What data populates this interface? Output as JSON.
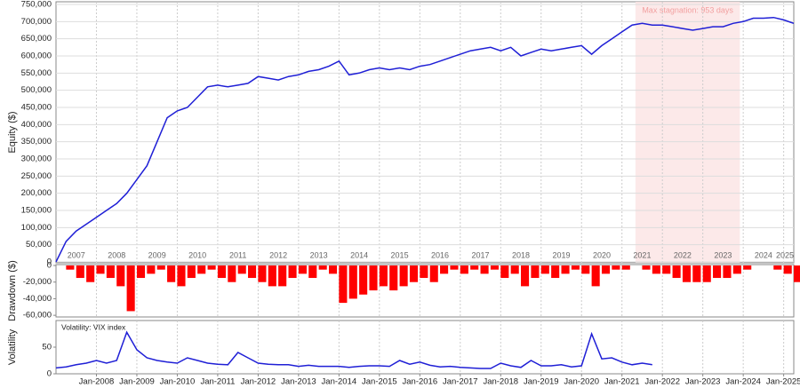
{
  "chart_data": [
    {
      "type": "line",
      "ylabel": "Equity ($)",
      "color": "#1f1fd6",
      "x": [
        "2007-01",
        "2007-04",
        "2007-07",
        "2007-10",
        "2008-01",
        "2008-04",
        "2008-07",
        "2008-10",
        "2009-01",
        "2009-04",
        "2009-07",
        "2009-10",
        "2010-01",
        "2010-04",
        "2010-07",
        "2010-10",
        "2011-01",
        "2011-04",
        "2011-07",
        "2011-10",
        "2012-01",
        "2012-04",
        "2012-07",
        "2012-10",
        "2013-01",
        "2013-04",
        "2013-07",
        "2013-10",
        "2014-01",
        "2014-04",
        "2014-07",
        "2014-10",
        "2015-01",
        "2015-04",
        "2015-07",
        "2015-10",
        "2016-01",
        "2016-04",
        "2016-07",
        "2016-10",
        "2017-01",
        "2017-04",
        "2017-07",
        "2017-10",
        "2018-01",
        "2018-04",
        "2018-07",
        "2018-10",
        "2019-01",
        "2019-04",
        "2019-07",
        "2019-10",
        "2020-01",
        "2020-04",
        "2020-07",
        "2020-10",
        "2021-01",
        "2021-04",
        "2021-07",
        "2021-10",
        "2022-01",
        "2022-04",
        "2022-07",
        "2022-10",
        "2023-01",
        "2023-04",
        "2023-07",
        "2023-10",
        "2024-01",
        "2024-04",
        "2024-07",
        "2024-10",
        "2025-01",
        "2025-04"
      ],
      "values": [
        0,
        60000,
        90000,
        110000,
        130000,
        150000,
        170000,
        200000,
        240000,
        280000,
        350000,
        420000,
        440000,
        450000,
        480000,
        510000,
        515000,
        510000,
        515000,
        520000,
        540000,
        535000,
        530000,
        540000,
        545000,
        555000,
        560000,
        570000,
        585000,
        545000,
        550000,
        560000,
        565000,
        560000,
        565000,
        560000,
        570000,
        575000,
        585000,
        595000,
        605000,
        615000,
        620000,
        625000,
        615000,
        625000,
        600000,
        610000,
        620000,
        615000,
        620000,
        625000,
        630000,
        605000,
        630000,
        650000,
        670000,
        690000,
        695000,
        690000,
        690000,
        685000,
        680000,
        675000,
        680000,
        685000,
        685000,
        695000,
        700000,
        710000,
        710000,
        712000,
        705000,
        695000
      ],
      "xlim": [
        "2007-01",
        "2025-04"
      ],
      "ylim": [
        0,
        750000
      ],
      "yticks": [
        {
          "value": 0,
          "label": "0"
        },
        {
          "value": 50000,
          "label": "50,000"
        },
        {
          "value": 100000,
          "label": "100,000"
        },
        {
          "value": 150000,
          "label": "150,000"
        },
        {
          "value": 200000,
          "label": "200,000"
        },
        {
          "value": 250000,
          "label": "250,000"
        },
        {
          "value": 300000,
          "label": "300,000"
        },
        {
          "value": 350000,
          "label": "350,000"
        },
        {
          "value": 400000,
          "label": "400,000"
        },
        {
          "value": 450000,
          "label": "450,000"
        },
        {
          "value": 500000,
          "label": "500,000"
        },
        {
          "value": 550000,
          "label": "550,000"
        },
        {
          "value": 600000,
          "label": "600,000"
        },
        {
          "value": 650000,
          "label": "650,000"
        },
        {
          "value": 700000,
          "label": "700,000"
        },
        {
          "value": 750000,
          "label": "750,000"
        }
      ],
      "year_labels": [
        "2007",
        "2008",
        "2009",
        "2010",
        "2011",
        "2012",
        "2013",
        "2014",
        "2015",
        "2016",
        "2017",
        "2018",
        "2019",
        "2020",
        "2021",
        "2022",
        "2023",
        "2024",
        "2025"
      ],
      "stagnation": {
        "label": "Max stagnation: 953 days",
        "start": "2021-05",
        "end": "2023-12",
        "color": "#fbe3e3"
      },
      "grid": true
    },
    {
      "type": "bar",
      "ylabel": "Drawdown ($)",
      "color": "#ff0000",
      "x": [
        "2007-01",
        "2007-04",
        "2007-07",
        "2007-10",
        "2008-01",
        "2008-04",
        "2008-07",
        "2008-10",
        "2009-01",
        "2009-04",
        "2009-07",
        "2009-10",
        "2010-01",
        "2010-04",
        "2010-07",
        "2010-10",
        "2011-01",
        "2011-04",
        "2011-07",
        "2011-10",
        "2012-01",
        "2012-04",
        "2012-07",
        "2012-10",
        "2013-01",
        "2013-04",
        "2013-07",
        "2013-10",
        "2014-01",
        "2014-04",
        "2014-07",
        "2014-10",
        "2015-01",
        "2015-04",
        "2015-07",
        "2015-10",
        "2016-01",
        "2016-04",
        "2016-07",
        "2016-10",
        "2017-01",
        "2017-04",
        "2017-07",
        "2017-10",
        "2018-01",
        "2018-04",
        "2018-07",
        "2018-10",
        "2019-01",
        "2019-04",
        "2019-07",
        "2019-10",
        "2020-01",
        "2020-04",
        "2020-07",
        "2020-10",
        "2021-01",
        "2021-04",
        "2021-07",
        "2021-10",
        "2022-01",
        "2022-04",
        "2022-07",
        "2022-10",
        "2023-01",
        "2023-04",
        "2023-07",
        "2023-10",
        "2024-01",
        "2024-04",
        "2024-07",
        "2024-10",
        "2025-01",
        "2025-04"
      ],
      "values": [
        0,
        -5000,
        -15000,
        -20000,
        -10000,
        -15000,
        -25000,
        -55000,
        -15000,
        -10000,
        -5000,
        -20000,
        -25000,
        -15000,
        -10000,
        -5000,
        -15000,
        -20000,
        -10000,
        -15000,
        -20000,
        -25000,
        -25000,
        -15000,
        -10000,
        -15000,
        -5000,
        -10000,
        -45000,
        -40000,
        -35000,
        -30000,
        -25000,
        -30000,
        -25000,
        -20000,
        -15000,
        -20000,
        -10000,
        -5000,
        -10000,
        -5000,
        -10000,
        -5000,
        -15000,
        -10000,
        -25000,
        -15000,
        -10000,
        -15000,
        -10000,
        -5000,
        -10000,
        -25000,
        -10000,
        -5000,
        -5000,
        0,
        -5000,
        -10000,
        -10000,
        -15000,
        -20000,
        -20000,
        -20000,
        -15000,
        -15000,
        -10000,
        -5000,
        0,
        0,
        -5000,
        -10000,
        -20000
      ],
      "xlim": [
        "2007-01",
        "2025-04"
      ],
      "ylim": [
        -62000,
        0
      ],
      "yticks": [
        0,
        {
          "value": -20000,
          "label": "-20,000"
        },
        {
          "value": -40000,
          "label": "-40,000"
        },
        {
          "value": -60000,
          "label": "-60,000"
        }
      ]
    },
    {
      "type": "line",
      "ylabel": "Volatility",
      "series": [
        {
          "name": "Volatility: VIX index",
          "color": "#1f1fd6",
          "x": [
            "2007-01",
            "2007-04",
            "2007-07",
            "2007-10",
            "2008-01",
            "2008-04",
            "2008-07",
            "2008-10",
            "2009-01",
            "2009-04",
            "2009-07",
            "2009-10",
            "2010-01",
            "2010-04",
            "2010-07",
            "2010-10",
            "2011-01",
            "2011-04",
            "2011-07",
            "2011-10",
            "2012-01",
            "2012-04",
            "2012-07",
            "2012-10",
            "2013-01",
            "2013-04",
            "2013-07",
            "2013-10",
            "2014-01",
            "2014-04",
            "2014-07",
            "2014-10",
            "2015-01",
            "2015-04",
            "2015-07",
            "2015-10",
            "2016-01",
            "2016-04",
            "2016-07",
            "2016-10",
            "2017-01",
            "2017-04",
            "2017-07",
            "2017-10",
            "2018-01",
            "2018-04",
            "2018-07",
            "2018-10",
            "2019-01",
            "2019-04",
            "2019-07",
            "2019-10",
            "2020-01",
            "2020-04",
            "2020-07",
            "2020-10",
            "2021-01",
            "2021-04",
            "2021-07",
            "2021-10"
          ],
          "values": [
            11,
            13,
            17,
            20,
            25,
            20,
            25,
            78,
            45,
            30,
            25,
            22,
            20,
            30,
            25,
            20,
            18,
            17,
            40,
            30,
            20,
            18,
            17,
            17,
            14,
            16,
            14,
            14,
            14,
            12,
            14,
            15,
            15,
            14,
            25,
            18,
            22,
            16,
            13,
            14,
            12,
            11,
            10,
            10,
            20,
            15,
            12,
            25,
            15,
            15,
            17,
            13,
            15,
            75,
            28,
            30,
            22,
            17,
            20,
            17
          ]
        }
      ],
      "xlim": [
        "2007-01",
        "2025-04"
      ],
      "ylim": [
        0,
        100
      ],
      "yticks": [
        0,
        50
      ],
      "xticks": [
        {
          "value": "2008-01",
          "label": "Jan-2008"
        },
        {
          "value": "2009-01",
          "label": "Jan-2009"
        },
        {
          "value": "2010-01",
          "label": "Jan-2010"
        },
        {
          "value": "2011-01",
          "label": "Jan-2011"
        },
        {
          "value": "2012-01",
          "label": "Jan-2012"
        },
        {
          "value": "2013-01",
          "label": "Jan-2013"
        },
        {
          "value": "2014-01",
          "label": "Jan-2014"
        },
        {
          "value": "2015-01",
          "label": "Jan-2015"
        },
        {
          "value": "2016-01",
          "label": "Jan-2016"
        },
        {
          "value": "2017-01",
          "label": "Jan-2017"
        },
        {
          "value": "2018-01",
          "label": "Jan-2018"
        },
        {
          "value": "2019-01",
          "label": "Jan-2019"
        },
        {
          "value": "2020-01",
          "label": "Jan-2020"
        },
        {
          "value": "2021-01",
          "label": "Jan-2021"
        },
        {
          "value": "2022-01",
          "label": "Jan-2022"
        },
        {
          "value": "2023-01",
          "label": "Jan-2023"
        },
        {
          "value": "2024-01",
          "label": "Jan-2024"
        },
        {
          "value": "2025-01",
          "label": "Jan-2025"
        }
      ]
    }
  ]
}
